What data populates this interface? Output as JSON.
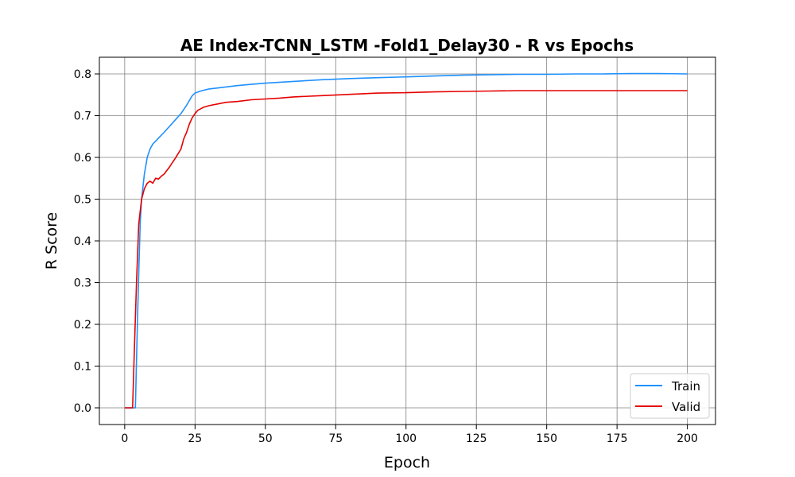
{
  "chart_data": {
    "type": "line",
    "title": "AE Index-TCNN_LSTM -Fold1_Delay30 - R vs Epochs",
    "xlabel": "Epoch",
    "ylabel": "R Score",
    "xlim": [
      -9,
      210
    ],
    "ylim": [
      -0.04,
      0.84
    ],
    "xticks": [
      "0",
      "25",
      "50",
      "75",
      "100",
      "125",
      "150",
      "175",
      "200"
    ],
    "yticks": [
      "0.0",
      "0.1",
      "0.2",
      "0.3",
      "0.4",
      "0.5",
      "0.6",
      "0.7",
      "0.8"
    ],
    "grid": true,
    "legend_position": "bottom-right",
    "series": [
      {
        "name": "Train",
        "color": "#1e90ff",
        "points": [
          [
            0,
            0
          ],
          [
            1,
            0
          ],
          [
            2,
            0
          ],
          [
            3,
            0
          ],
          [
            3.8,
            0
          ],
          [
            4.5,
            0.2
          ],
          [
            5,
            0.32
          ],
          [
            5.5,
            0.44
          ],
          [
            6,
            0.5
          ],
          [
            7,
            0.56
          ],
          [
            8,
            0.6
          ],
          [
            9,
            0.62
          ],
          [
            10,
            0.632
          ],
          [
            12,
            0.646
          ],
          [
            14,
            0.66
          ],
          [
            16,
            0.675
          ],
          [
            18,
            0.69
          ],
          [
            20,
            0.705
          ],
          [
            22,
            0.725
          ],
          [
            24,
            0.748
          ],
          [
            25,
            0.754
          ],
          [
            27,
            0.759
          ],
          [
            30,
            0.764
          ],
          [
            35,
            0.768
          ],
          [
            40,
            0.772
          ],
          [
            45,
            0.775
          ],
          [
            50,
            0.778
          ],
          [
            60,
            0.782
          ],
          [
            70,
            0.786
          ],
          [
            80,
            0.789
          ],
          [
            90,
            0.791
          ],
          [
            100,
            0.793
          ],
          [
            110,
            0.795
          ],
          [
            120,
            0.797
          ],
          [
            130,
            0.798
          ],
          [
            140,
            0.799
          ],
          [
            150,
            0.799
          ],
          [
            160,
            0.8
          ],
          [
            170,
            0.8
          ],
          [
            180,
            0.801
          ],
          [
            190,
            0.801
          ],
          [
            200,
            0.8
          ]
        ]
      },
      {
        "name": "Valid",
        "color": "#e60000",
        "points": [
          [
            0,
            0
          ],
          [
            1,
            0
          ],
          [
            2,
            0
          ],
          [
            2.8,
            0
          ],
          [
            3.5,
            0.15
          ],
          [
            4.2,
            0.3
          ],
          [
            5,
            0.44
          ],
          [
            6,
            0.5
          ],
          [
            7,
            0.525
          ],
          [
            8,
            0.538
          ],
          [
            9,
            0.543
          ],
          [
            10,
            0.538
          ],
          [
            11,
            0.55
          ],
          [
            12,
            0.548
          ],
          [
            13,
            0.555
          ],
          [
            14,
            0.56
          ],
          [
            16,
            0.578
          ],
          [
            18,
            0.598
          ],
          [
            20,
            0.62
          ],
          [
            21,
            0.645
          ],
          [
            22,
            0.66
          ],
          [
            23,
            0.68
          ],
          [
            24,
            0.695
          ],
          [
            25,
            0.705
          ],
          [
            26,
            0.713
          ],
          [
            28,
            0.72
          ],
          [
            30,
            0.724
          ],
          [
            33,
            0.728
          ],
          [
            36,
            0.732
          ],
          [
            40,
            0.734
          ],
          [
            45,
            0.738
          ],
          [
            50,
            0.74
          ],
          [
            55,
            0.742
          ],
          [
            60,
            0.745
          ],
          [
            70,
            0.748
          ],
          [
            80,
            0.751
          ],
          [
            90,
            0.754
          ],
          [
            100,
            0.755
          ],
          [
            110,
            0.757
          ],
          [
            120,
            0.758
          ],
          [
            130,
            0.759
          ],
          [
            140,
            0.76
          ],
          [
            150,
            0.76
          ],
          [
            160,
            0.76
          ],
          [
            170,
            0.76
          ],
          [
            180,
            0.76
          ],
          [
            190,
            0.76
          ],
          [
            200,
            0.76
          ]
        ]
      }
    ]
  }
}
